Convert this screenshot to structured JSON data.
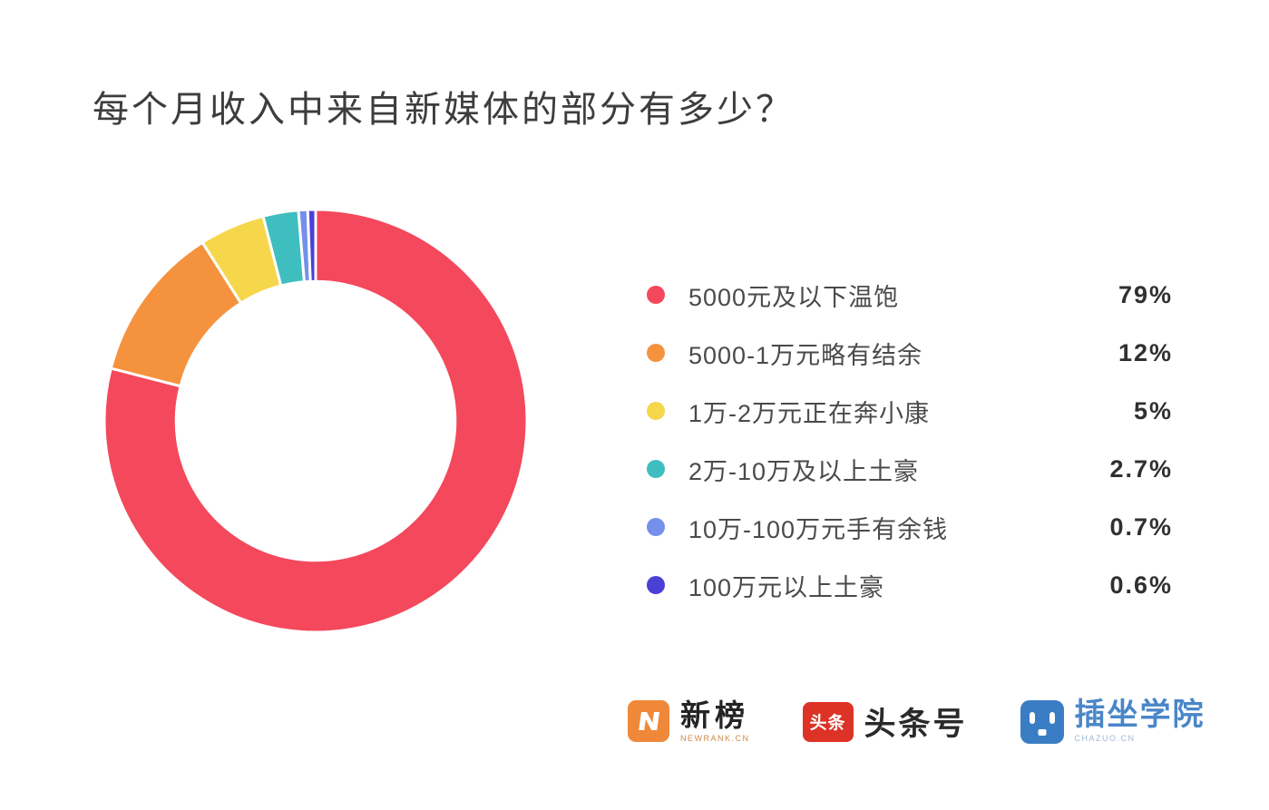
{
  "title": "每个月收入中来自新媒体的部分有多少？",
  "chart_data": {
    "type": "pie",
    "subtype": "donut",
    "title": "每个月收入中来自新媒体的部分有多少？",
    "categories": [
      "5000元及以下温饱",
      "5000-1万元略有结余",
      "1万-2万元正在奔小康",
      "2万-10万及以上土豪",
      "10万-100万元手有余钱",
      "100万元以上土豪"
    ],
    "values": [
      79,
      12,
      5,
      2.7,
      0.7,
      0.6
    ],
    "value_labels": [
      "79%",
      "12%",
      "5%",
      "2.7%",
      "0.7%",
      "0.6%"
    ],
    "colors": [
      "#f4485c",
      "#f5923e",
      "#f6d74b",
      "#3fbec0",
      "#7590ea",
      "#4b40d6"
    ],
    "legend_position": "right",
    "donut_hole_ratio": 0.66,
    "start_angle_deg": 0,
    "direction": "clockwise",
    "slice_separator_color": "#ffffff"
  },
  "footer": {
    "newrank": {
      "icon_letter": "N",
      "name": "新榜",
      "caption": "NEWRANK.CN"
    },
    "toutiao": {
      "icon_text": "头条",
      "name": "头条号"
    },
    "chazuo": {
      "name": "插坐学院",
      "caption": "CHAZUO.CN"
    }
  }
}
